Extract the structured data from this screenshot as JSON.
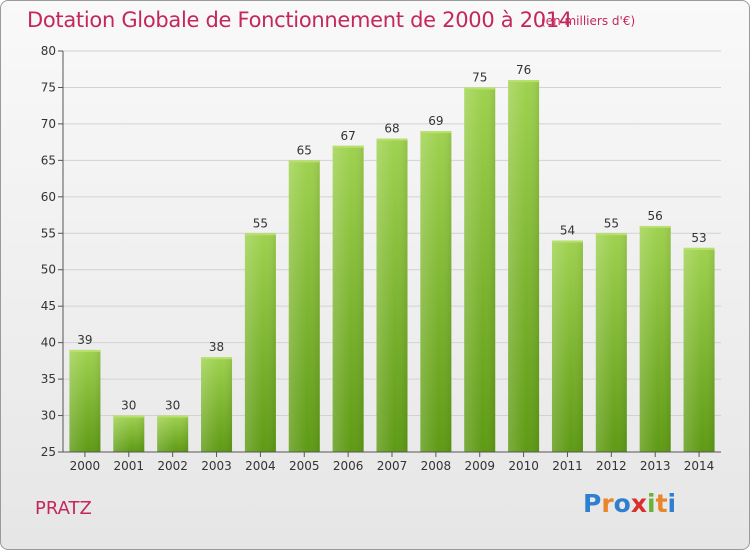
{
  "header": {
    "title": "Dotation Globale de Fonctionnement de 2000 à 2014",
    "unit": "(en milliers d'€)"
  },
  "footer": {
    "commune": "PRATZ",
    "logo_letters": [
      "P",
      "r",
      "o",
      "x",
      "i",
      "t",
      "i"
    ],
    "logo_colors": [
      "#2f7fd0",
      "#e9862a",
      "#2f7fd0",
      "#d9302e",
      "#67b43a",
      "#e9862a",
      "#2f7fd0"
    ]
  },
  "chart_data": {
    "type": "bar",
    "title": "Dotation Globale de Fonctionnement de 2000 à 2014",
    "subtitle": "(en milliers d'€)",
    "categories": [
      "2000",
      "2001",
      "2002",
      "2003",
      "2004",
      "2005",
      "2006",
      "2007",
      "2008",
      "2009",
      "2010",
      "2011",
      "2012",
      "2013",
      "2014"
    ],
    "values": [
      39,
      30,
      30,
      38,
      55,
      65,
      67,
      68,
      69,
      75,
      76,
      54,
      55,
      56,
      53
    ],
    "ylim": [
      25,
      80
    ],
    "yticks": [
      25,
      30,
      35,
      40,
      45,
      50,
      55,
      60,
      65,
      70,
      75,
      80
    ],
    "grid": true,
    "bar_color_top": "#9fd24f",
    "bar_color_bottom": "#5e9a14",
    "grid_color": "#d2d2d2",
    "axis_color": "#555555"
  }
}
